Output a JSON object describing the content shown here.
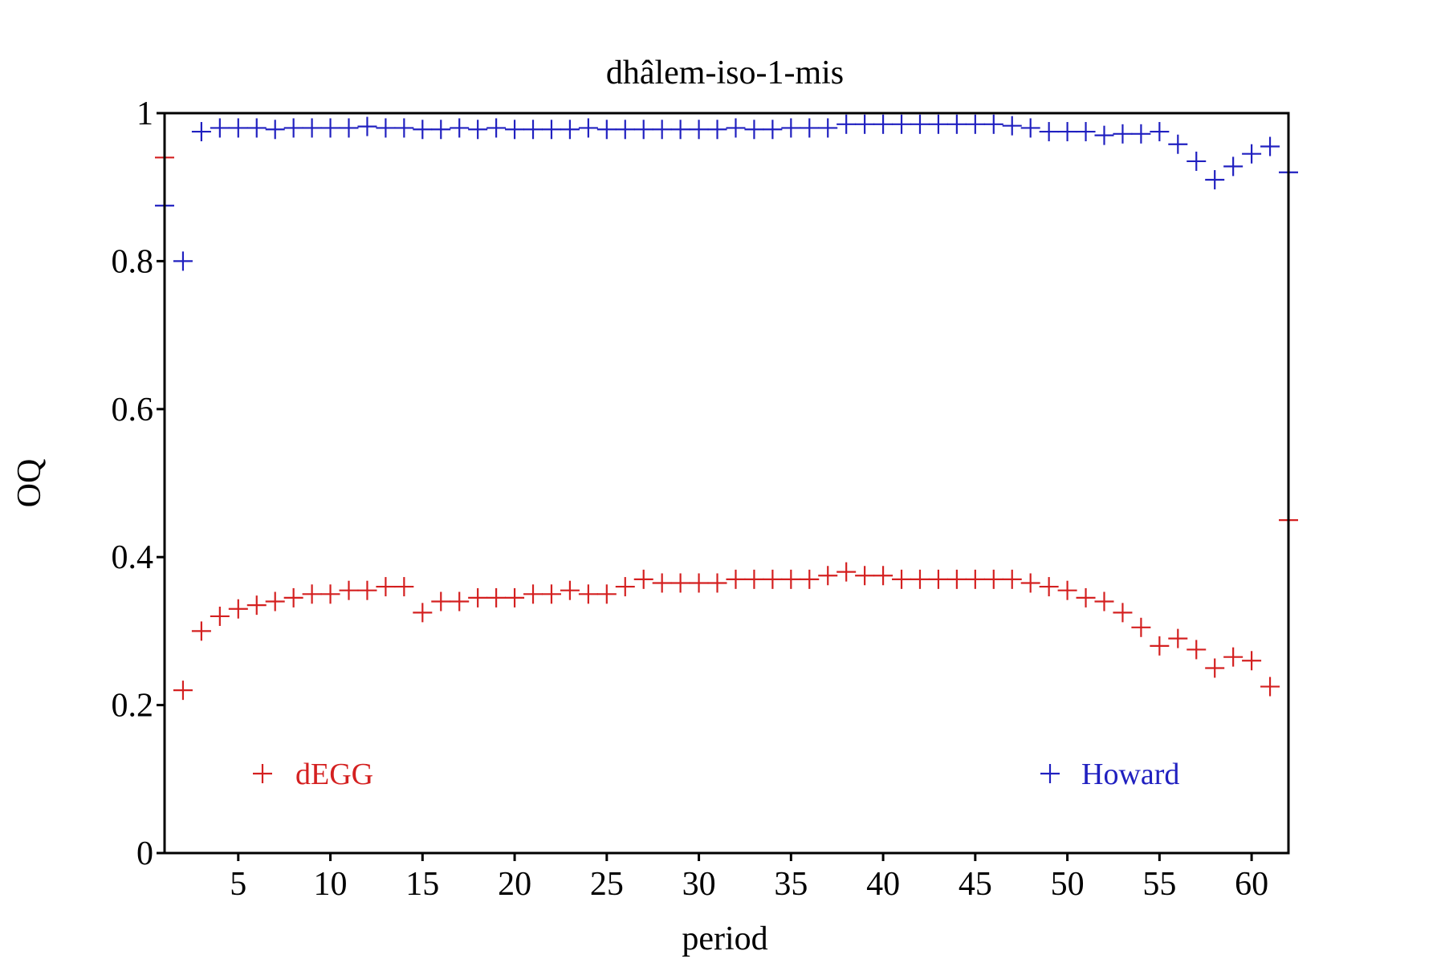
{
  "chart_data": {
    "type": "scatter",
    "title": "dhâlem-iso-1-mis",
    "xlabel": "period",
    "ylabel": "OQ",
    "xlim": [
      1,
      62
    ],
    "ylim": [
      0,
      1
    ],
    "x_ticks": [
      5,
      10,
      15,
      20,
      25,
      30,
      35,
      40,
      45,
      50,
      55,
      60
    ],
    "y_ticks": [
      0,
      0.2,
      0.4,
      0.6,
      0.8,
      1
    ],
    "y_tick_labels": [
      "0",
      "0.2",
      "0.4",
      "0.6",
      "0.8",
      "1"
    ],
    "grid": false,
    "marker": "+",
    "series": [
      {
        "name": "dEGG",
        "color": "#d42020",
        "legend_position": "bottom-left",
        "x": [
          1,
          2,
          3,
          4,
          5,
          6,
          7,
          8,
          9,
          10,
          11,
          12,
          13,
          14,
          15,
          16,
          17,
          18,
          19,
          20,
          21,
          22,
          23,
          24,
          25,
          26,
          27,
          28,
          29,
          30,
          31,
          32,
          33,
          34,
          35,
          36,
          37,
          38,
          39,
          40,
          41,
          42,
          43,
          44,
          45,
          46,
          47,
          48,
          49,
          50,
          51,
          52,
          53,
          54,
          55,
          56,
          57,
          58,
          59,
          60,
          61,
          62
        ],
        "y": [
          0.94,
          0.22,
          0.3,
          0.32,
          0.33,
          0.335,
          0.34,
          0.345,
          0.35,
          0.35,
          0.355,
          0.355,
          0.36,
          0.36,
          0.325,
          0.34,
          0.34,
          0.345,
          0.345,
          0.345,
          0.35,
          0.35,
          0.355,
          0.35,
          0.35,
          0.36,
          0.37,
          0.365,
          0.365,
          0.365,
          0.365,
          0.37,
          0.37,
          0.37,
          0.37,
          0.37,
          0.375,
          0.38,
          0.375,
          0.375,
          0.37,
          0.37,
          0.37,
          0.37,
          0.37,
          0.37,
          0.37,
          0.365,
          0.36,
          0.355,
          0.345,
          0.34,
          0.325,
          0.305,
          0.28,
          0.29,
          0.275,
          0.25,
          0.265,
          0.26,
          0.225,
          0.45
        ]
      },
      {
        "name": "Howard",
        "color": "#2020c0",
        "legend_position": "bottom-right",
        "x": [
          1,
          2,
          3,
          4,
          5,
          6,
          7,
          8,
          9,
          10,
          11,
          12,
          13,
          14,
          15,
          16,
          17,
          18,
          19,
          20,
          21,
          22,
          23,
          24,
          25,
          26,
          27,
          28,
          29,
          30,
          31,
          32,
          33,
          34,
          35,
          36,
          37,
          38,
          39,
          40,
          41,
          42,
          43,
          44,
          45,
          46,
          47,
          48,
          49,
          50,
          51,
          52,
          53,
          54,
          55,
          56,
          57,
          58,
          59,
          60,
          61,
          62
        ],
        "y": [
          0.875,
          0.8,
          0.975,
          0.98,
          0.98,
          0.98,
          0.978,
          0.98,
          0.98,
          0.98,
          0.98,
          0.982,
          0.98,
          0.98,
          0.978,
          0.978,
          0.98,
          0.978,
          0.98,
          0.978,
          0.978,
          0.978,
          0.978,
          0.98,
          0.978,
          0.978,
          0.978,
          0.978,
          0.978,
          0.978,
          0.978,
          0.98,
          0.978,
          0.978,
          0.98,
          0.98,
          0.98,
          0.985,
          0.985,
          0.985,
          0.985,
          0.985,
          0.985,
          0.985,
          0.985,
          0.985,
          0.983,
          0.98,
          0.975,
          0.975,
          0.975,
          0.97,
          0.972,
          0.972,
          0.975,
          0.958,
          0.935,
          0.91,
          0.928,
          0.945,
          0.955,
          0.92
        ]
      }
    ]
  }
}
